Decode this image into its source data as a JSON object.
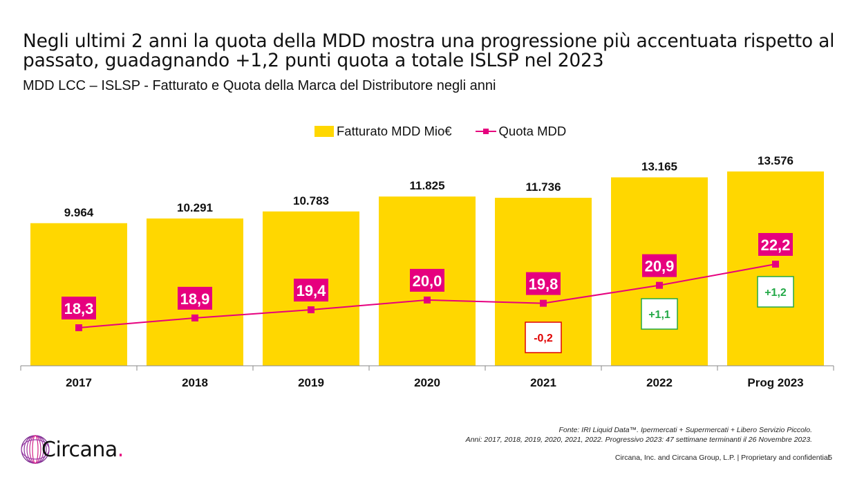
{
  "slide": {
    "title": "Negli ultimi 2 anni la quota della MDD mostra una progressione più accentuata rispetto al passato,  guadagnando +1,2 punti quota a totale ISLSP nel 2023",
    "subtitle": "MDD LCC – ISLSP - Fatturato e Quota della Marca del Distributore negli anni",
    "source_line1": "Fonte: IRI Liquid Data™. Ipermercati + Supermercati + Libero Servizio Piccolo.",
    "source_line2": "Anni:  2017, 2018, 2019, 2020, 2021, 2022. Progressivo 2023: 47 settimane terminanti il 26 Novembre 2023.",
    "copyright": "Circana, Inc. and Circana Group, L.P. |  Proprietary and confidential",
    "page_number": "5",
    "logo_text": "Circana",
    "logo_dot": "."
  },
  "colors": {
    "bar": "#FFD700",
    "line": "#E6007E",
    "negative": "#E00000",
    "positive": "#22A846",
    "axis": "#888888"
  },
  "chart_data": {
    "type": "bar",
    "categories": [
      "2017",
      "2018",
      "2019",
      "2020",
      "2021",
      "2022",
      "Prog 2023"
    ],
    "series": [
      {
        "name": "Fatturato MDD Mio€",
        "type": "bar",
        "values": [
          9964,
          10291,
          10783,
          11825,
          11736,
          13165,
          13576
        ],
        "labels": [
          "9.964",
          "10.291",
          "10.783",
          "11.825",
          "11.736",
          "13.165",
          "13.576"
        ]
      },
      {
        "name": "Quota MDD",
        "type": "line",
        "values": [
          18.3,
          18.9,
          19.4,
          20.0,
          19.8,
          20.9,
          22.2
        ],
        "labels": [
          "18,3",
          "18,9",
          "19,4",
          "20,0",
          "19,8",
          "20,9",
          "22,2"
        ]
      }
    ],
    "annotations": [
      {
        "category": "2021",
        "text": "-0,2",
        "kind": "negative"
      },
      {
        "category": "2022",
        "text": "+1,1",
        "kind": "positive"
      },
      {
        "category": "Prog 2023",
        "text": "+1,2",
        "kind": "positive"
      }
    ],
    "legend": "top-center",
    "grid": false
  }
}
